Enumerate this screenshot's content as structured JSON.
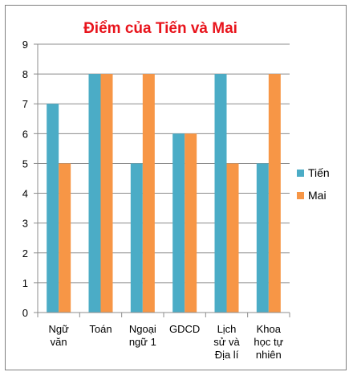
{
  "chart_data": {
    "type": "bar",
    "title": "Điểm  của  Tiến  và  Mai",
    "categories": [
      [
        "Ngữ",
        "văn"
      ],
      [
        "Toán"
      ],
      [
        "Ngoại",
        "ngữ 1"
      ],
      [
        "GDCD"
      ],
      [
        "Lịch",
        "sử và",
        "Địa lí"
      ],
      [
        "Khoa",
        "học tự",
        "nhiên"
      ]
    ],
    "series": [
      {
        "name": "Tiến",
        "values": [
          7,
          8,
          5,
          6,
          8,
          5
        ],
        "color": "#4bacc6"
      },
      {
        "name": "Mai",
        "values": [
          5,
          8,
          8,
          6,
          5,
          8
        ],
        "color": "#f79646"
      }
    ],
    "ylim": [
      0,
      9
    ],
    "yticks": [
      "0",
      "1",
      "2",
      "3",
      "4",
      "5",
      "6",
      "7",
      "8",
      "9"
    ],
    "grid": true,
    "legend": "right"
  }
}
